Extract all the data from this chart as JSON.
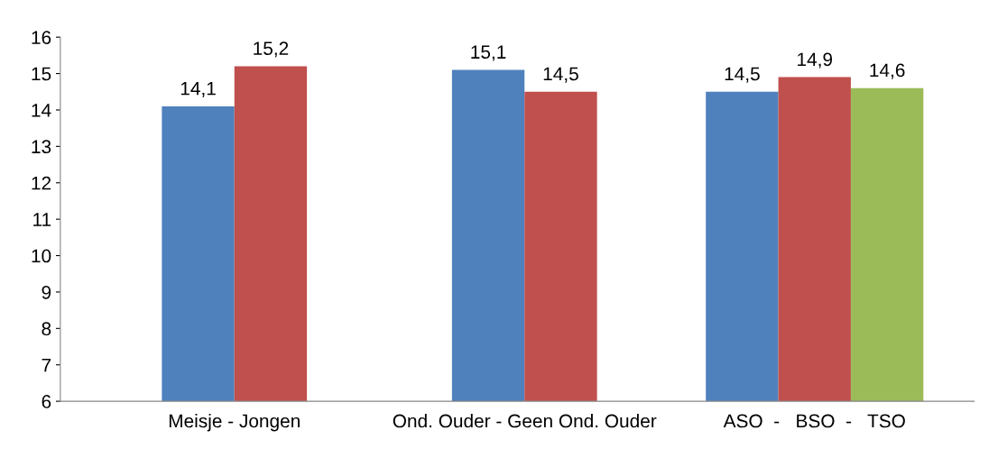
{
  "chart_data": {
    "type": "bar",
    "categories": [
      "Meisje - Jongen",
      "Ond. Ouder - Geen Ond. Ouder",
      "ASO  -   BSO  -   TSO"
    ],
    "series": [
      {
        "color": "#4f81bd",
        "values": [
          14.1,
          15.1,
          14.5
        ],
        "value_labels": [
          "14,1",
          "15,1",
          "14,5"
        ]
      },
      {
        "color": "#c0504d",
        "values": [
          15.2,
          14.5,
          14.9
        ],
        "value_labels": [
          "15,2",
          "14,5",
          "14,9"
        ]
      },
      {
        "color": "#9bbb59",
        "values": [
          null,
          null,
          14.6
        ],
        "value_labels": [
          null,
          null,
          "14,6"
        ]
      }
    ],
    "ylim": [
      6,
      16
    ],
    "yticks": [
      6,
      7,
      8,
      9,
      10,
      11,
      12,
      13,
      14,
      15,
      16
    ],
    "grid": false,
    "legend": false
  }
}
